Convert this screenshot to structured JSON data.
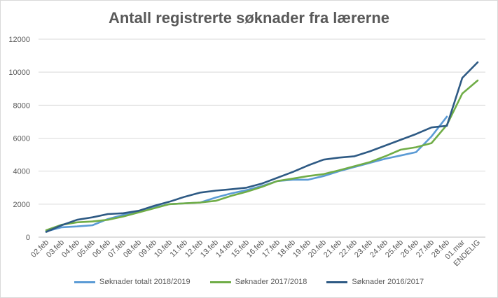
{
  "chart_data": {
    "type": "line",
    "title": "Antall registrerte søknader fra lærerne",
    "xlabel": "",
    "ylabel": "",
    "ylim": [
      0,
      12000
    ],
    "yticks": [
      0,
      2000,
      4000,
      6000,
      8000,
      10000,
      12000
    ],
    "grid": true,
    "legend_position": "bottom",
    "categories": [
      "02.feb",
      "03.feb",
      "04.feb",
      "05.feb",
      "06.feb",
      "07.feb",
      "08.feb",
      "09.feb",
      "10.feb",
      "11.feb",
      "12.feb",
      "13.feb",
      "14.feb",
      "15.feb",
      "16.feb",
      "17.feb",
      "18.feb",
      "19.feb",
      "20.feb",
      "21.feb",
      "22.feb",
      "23.feb",
      "24.feb",
      "25.feb",
      "26.feb",
      "27.feb",
      "28.feb",
      "01.mar",
      "ENDELIG"
    ],
    "series": [
      {
        "name": "Søknader totalt 2018/2019",
        "color": "#5b9bd5",
        "values": [
          350,
          600,
          650,
          720,
          1100,
          1350,
          1550,
          1800,
          2000,
          2050,
          2100,
          2400,
          2650,
          2850,
          3100,
          3400,
          3480,
          3480,
          3700,
          4000,
          4250,
          4500,
          4750,
          4950,
          5150,
          6100,
          7300,
          null,
          null
        ]
      },
      {
        "name": "Søknader 2017/2018",
        "color": "#70ad47",
        "values": [
          420,
          750,
          900,
          950,
          1050,
          1250,
          1500,
          1750,
          2000,
          2050,
          2100,
          2200,
          2500,
          2750,
          3050,
          3400,
          3550,
          3700,
          3820,
          4050,
          4300,
          4550,
          4900,
          5300,
          5450,
          5700,
          6800,
          8700,
          9500
        ]
      },
      {
        "name": "Søknader 2016/2017",
        "color": "#2e5a84",
        "values": [
          320,
          720,
          1050,
          1200,
          1400,
          1450,
          1600,
          1900,
          2150,
          2450,
          2700,
          2820,
          2900,
          3000,
          3250,
          3600,
          3950,
          4350,
          4700,
          4820,
          4900,
          5200,
          5550,
          5900,
          6250,
          6650,
          6750,
          9650,
          10600
        ]
      }
    ]
  }
}
